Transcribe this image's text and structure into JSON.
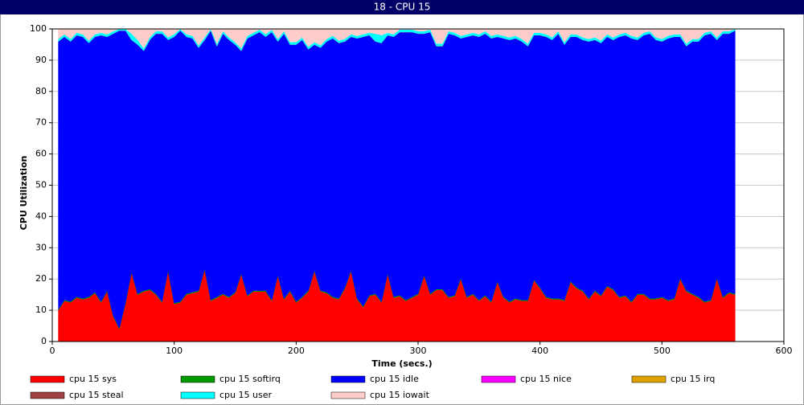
{
  "chart_data": {
    "type": "stacked-area",
    "title": "18 - CPU 15",
    "xlabel": "Time (secs.)",
    "ylabel": "CPU Utilization",
    "x": [
      5,
      10,
      15,
      20,
      25,
      30,
      35,
      40,
      45,
      50,
      55,
      60,
      65,
      70,
      75,
      80,
      85,
      90,
      95,
      100,
      105,
      110,
      115,
      120,
      125,
      130,
      135,
      140,
      145,
      150,
      155,
      160,
      165,
      170,
      175,
      180,
      185,
      190,
      195,
      200,
      205,
      210,
      215,
      220,
      225,
      230,
      235,
      240,
      245,
      250,
      255,
      260,
      265,
      270,
      275,
      280,
      285,
      290,
      295,
      300,
      305,
      310,
      315,
      320,
      325,
      330,
      335,
      340,
      345,
      350,
      355,
      360,
      365,
      370,
      375,
      380,
      385,
      390,
      395,
      400,
      405,
      410,
      415,
      420,
      425,
      430,
      435,
      440,
      445,
      450,
      455,
      460,
      465,
      470,
      475,
      480,
      485,
      490,
      495,
      500,
      505,
      510,
      515,
      520,
      525,
      530,
      535,
      540,
      545,
      550,
      555,
      560
    ],
    "xlim": [
      0,
      600
    ],
    "xticks": [
      0,
      100,
      200,
      300,
      400,
      500,
      600
    ],
    "ylim": [
      0,
      100
    ],
    "yticks": [
      0,
      10,
      20,
      30,
      40,
      50,
      60,
      70,
      80,
      90,
      100
    ],
    "grid": true,
    "legend": "bottom",
    "series": [
      {
        "name": "cpu 15 sys",
        "color": "#ff0000",
        "values": [
          10,
          13,
          12.5,
          14,
          13.5,
          14,
          15.5,
          12.5,
          16,
          8,
          4,
          12,
          22,
          15,
          16,
          16.5,
          15,
          12.5,
          22.5,
          12,
          12.5,
          15,
          15.5,
          16,
          23,
          13,
          14,
          15,
          14,
          15.5,
          21.5,
          14.5,
          16,
          16,
          16,
          13,
          21,
          13.5,
          16,
          12.5,
          14,
          16,
          22.5,
          16,
          15.5,
          14,
          13.5,
          17,
          22.5,
          13.5,
          11,
          14.5,
          15,
          12.5,
          21.5,
          14,
          14.5,
          13,
          14,
          15,
          21,
          15,
          16.5,
          16.5,
          14,
          14.5,
          20,
          14,
          15,
          13,
          14.5,
          12.5,
          19,
          14,
          12.5,
          13.5,
          13,
          13,
          19.5,
          17,
          14,
          13.5,
          13.5,
          13,
          19,
          17,
          16,
          13.5,
          16,
          14.5,
          17.5,
          16.5,
          14,
          14.5,
          12.5,
          15,
          15,
          13.5,
          13.5,
          14,
          13,
          13.5,
          20,
          16,
          15,
          14,
          12.5,
          13,
          20,
          14,
          15.5,
          15
        ]
      },
      {
        "name": "cpu 15 softirq",
        "color": "#009900",
        "values": [
          0.3,
          0.3,
          0.3,
          0.3,
          0.3,
          0.3,
          0.3,
          0.3,
          0.3,
          0.3,
          0.3,
          0.3,
          0.3,
          0.3,
          0.3,
          0.3,
          0.3,
          0.3,
          0.3,
          0.3,
          0.3,
          0.3,
          0.3,
          0.3,
          0.3,
          0.3,
          0.3,
          0.3,
          0.3,
          0.3,
          0.3,
          0.3,
          0.3,
          0.3,
          0.3,
          0.3,
          0.3,
          0.3,
          0.3,
          0.3,
          0.3,
          0.3,
          0.3,
          0.3,
          0.3,
          0.3,
          0.3,
          0.3,
          0.3,
          0.3,
          0.3,
          0.3,
          0.3,
          0.3,
          0.3,
          0.3,
          0.3,
          0.3,
          0.3,
          0.3,
          0.3,
          0.3,
          0.3,
          0.3,
          0.3,
          0.3,
          0.3,
          0.3,
          0.3,
          0.3,
          0.3,
          0.3,
          0.3,
          0.3,
          0.3,
          0.3,
          0.3,
          0.3,
          0.3,
          0.3,
          0.3,
          0.3,
          0.3,
          0.3,
          0.3,
          0.3,
          0.3,
          0.3,
          0.3,
          0.3,
          0.3,
          0.3,
          0.3,
          0.3,
          0.3,
          0.3,
          0.3,
          0.3,
          0.3,
          0.3,
          0.3,
          0.3,
          0.3,
          0.3,
          0.3,
          0.3,
          0.3,
          0.3,
          0.3,
          0.3,
          0.3,
          0.3
        ]
      },
      {
        "name": "cpu 15 idle",
        "color": "#0000ff",
        "values": [
          85.7,
          84.2,
          83.2,
          83.7,
          83.7,
          81.2,
          81.7,
          85.2,
          81.2,
          90.2,
          95.2,
          87.2,
          74.2,
          79.7,
          76.7,
          79.7,
          83.2,
          85.7,
          73.7,
          85.2,
          86.7,
          82.2,
          81.2,
          77.7,
          73.2,
          86.2,
          80.2,
          83.2,
          82.2,
          79.2,
          71.2,
          82.2,
          81.7,
          82.7,
          81.2,
          85.7,
          74.7,
          84.7,
          78.7,
          82.2,
          82.2,
          77.2,
          72.2,
          77.7,
          80.2,
          82.7,
          81.7,
          78.7,
          74.7,
          83.2,
          86.2,
          83.2,
          80.7,
          82.7,
          76.2,
          83.2,
          84.2,
          85.7,
          84.7,
          83.2,
          77.2,
          83.7,
          77.7,
          77.7,
          84.2,
          83.2,
          76.7,
          83.2,
          82.7,
          84.2,
          83.7,
          84.2,
          78.2,
          82.7,
          83.7,
          83.2,
          82.7,
          81.2,
          78.2,
          80.7,
          83.2,
          82.7,
          84.7,
          81.7,
          78.2,
          80.2,
          80.2,
          82.2,
          80.2,
          80.7,
          79.7,
          79.7,
          83.2,
          83.2,
          84.2,
          81.2,
          82.7,
          84.7,
          82.7,
          81.7,
          83.7,
          83.7,
          77.2,
          78.2,
          80.7,
          81.7,
          85.2,
          85.2,
          76.2,
          84.2,
          82.7,
          84.2
        ]
      },
      {
        "name": "cpu 15 nice",
        "color": "#ff00ff",
        "values": [
          0,
          0,
          0,
          0,
          0,
          0,
          0,
          0,
          0,
          0,
          0,
          0,
          0,
          0,
          0,
          0,
          0,
          0,
          0,
          0,
          0,
          0,
          0,
          0,
          0,
          0,
          0,
          0,
          0,
          0,
          0,
          0,
          0,
          0,
          0,
          0,
          0,
          0,
          0,
          0,
          0,
          0,
          0,
          0,
          0,
          0,
          0,
          0,
          0,
          0,
          0,
          0,
          0,
          0,
          0,
          0,
          0,
          0,
          0,
          0,
          0,
          0,
          0,
          0,
          0,
          0,
          0,
          0,
          0,
          0,
          0,
          0,
          0,
          0,
          0,
          0,
          0,
          0,
          0,
          0,
          0,
          0,
          0,
          0,
          0,
          0,
          0,
          0,
          0,
          0,
          0,
          0,
          0,
          0,
          0,
          0,
          0,
          0,
          0,
          0,
          0,
          0,
          0,
          0,
          0,
          0,
          0,
          0,
          0,
          0,
          0,
          0
        ]
      },
      {
        "name": "cpu 15 irq",
        "color": "#e0a000",
        "values": [
          0,
          0,
          0,
          0,
          0,
          0,
          0,
          0,
          0,
          0,
          0,
          0,
          0,
          0,
          0,
          0,
          0,
          0,
          0,
          0,
          0,
          0,
          0,
          0,
          0,
          0,
          0,
          0,
          0,
          0,
          0,
          0,
          0,
          0,
          0,
          0,
          0,
          0,
          0,
          0,
          0,
          0,
          0,
          0,
          0,
          0,
          0,
          0,
          0,
          0,
          0,
          0,
          0,
          0,
          0,
          0,
          0,
          0,
          0,
          0,
          0,
          0,
          0,
          0,
          0,
          0,
          0,
          0,
          0,
          0,
          0,
          0,
          0,
          0,
          0,
          0,
          0,
          0,
          0,
          0,
          0,
          0,
          0,
          0,
          0,
          0,
          0,
          0,
          0,
          0,
          0,
          0,
          0,
          0,
          0,
          0,
          0,
          0,
          0,
          0,
          0,
          0,
          0,
          0,
          0,
          0,
          0,
          0,
          0,
          0,
          0,
          0
        ]
      },
      {
        "name": "cpu 15 steal",
        "color": "#a04040",
        "values": [
          0,
          0,
          0,
          0,
          0,
          0,
          0,
          0,
          0,
          0,
          0,
          0,
          0,
          0,
          0,
          0,
          0,
          0,
          0,
          0,
          0,
          0,
          0,
          0,
          0,
          0,
          0,
          0,
          0,
          0,
          0,
          0,
          0,
          0,
          0,
          0,
          0,
          0,
          0,
          0,
          0,
          0,
          0,
          0,
          0,
          0,
          0,
          0,
          0,
          0,
          0,
          0,
          0,
          0,
          0,
          0,
          0,
          0,
          0,
          0,
          0,
          0,
          0,
          0,
          0,
          0,
          0,
          0,
          0,
          0,
          0,
          0,
          0,
          0,
          0,
          0,
          0,
          0,
          0,
          0,
          0,
          0,
          0,
          0,
          0,
          0,
          0,
          0,
          0,
          0,
          0,
          0,
          0,
          0,
          0,
          0,
          0,
          0,
          0,
          0,
          0,
          0,
          0,
          0,
          0,
          0,
          0,
          0,
          0,
          0,
          0,
          0
        ]
      },
      {
        "name": "cpu 15 user",
        "color": "#00ffff",
        "values": [
          0.8,
          0.8,
          0.8,
          0.8,
          0.8,
          0.8,
          0.8,
          0.8,
          0.8,
          0.8,
          0.5,
          0.5,
          2,
          1.5,
          0.8,
          0.8,
          0.8,
          0.8,
          0.8,
          0.8,
          0.5,
          0.8,
          0.8,
          0.8,
          0.8,
          0.5,
          0.8,
          0.8,
          0.8,
          0.8,
          0.8,
          0.8,
          0.8,
          0.8,
          0.8,
          0.8,
          0.8,
          0.8,
          0.8,
          0.8,
          0.8,
          0.8,
          0.8,
          0.8,
          0.8,
          0.8,
          0.8,
          0.8,
          0.8,
          0.8,
          0.8,
          0.8,
          2.5,
          2.5,
          0.8,
          0.8,
          0.8,
          0.8,
          0.8,
          0.8,
          0.8,
          0.8,
          0.8,
          0.8,
          0.8,
          0.8,
          0.8,
          0.8,
          0.8,
          0.8,
          0.8,
          0.8,
          0.8,
          0.8,
          0.8,
          0.8,
          0.8,
          0.8,
          0.8,
          0.8,
          0.8,
          0.8,
          0.8,
          0.8,
          0.8,
          0.8,
          0.8,
          0.8,
          0.8,
          0.8,
          0.8,
          0.8,
          0.8,
          0.8,
          0.8,
          0.8,
          0.8,
          0.8,
          0.8,
          0.8,
          0.8,
          0.8,
          0.8,
          0.8,
          0.8,
          0.8,
          0.8,
          0.8,
          0.8,
          0.8,
          0.8,
          0.5
        ]
      },
      {
        "name": "cpu 15 iowait",
        "color": "#ffcccc",
        "values": [
          3.2,
          1.7,
          3.2,
          1.2,
          1.7,
          3.7,
          1.7,
          1.2,
          1.7,
          0.7,
          0,
          0,
          1.5,
          3.5,
          6.2,
          2.7,
          0.7,
          0.7,
          2.7,
          1.7,
          0,
          1.7,
          2.2,
          5.2,
          2.7,
          0,
          4.7,
          0.7,
          2.7,
          4.2,
          6.2,
          2.2,
          1.2,
          0.2,
          1.7,
          0.2,
          3.2,
          0.7,
          4.2,
          4.2,
          2.7,
          5.7,
          4.2,
          5.2,
          3.2,
          2.2,
          3.7,
          3.2,
          1.7,
          2.2,
          1.7,
          1.2,
          1.5,
          2,
          1.2,
          1.7,
          0.2,
          0.2,
          0.2,
          0.7,
          0.7,
          0.2,
          4.7,
          4.7,
          0.7,
          1.2,
          2.2,
          1.7,
          1.2,
          1.7,
          0.7,
          2.2,
          1.7,
          2.2,
          2.7,
          2.2,
          3.2,
          4.7,
          1.2,
          1.2,
          1.7,
          2.7,
          0.7,
          4.2,
          1.7,
          1.7,
          2.7,
          3.2,
          2.7,
          3.7,
          1.7,
          2.7,
          1.7,
          1.2,
          2.2,
          2.7,
          1.2,
          0.7,
          2.7,
          3.2,
          2.2,
          1.7,
          1.7,
          4.7,
          3.2,
          3.2,
          1.2,
          0.7,
          2.7,
          0.7,
          0.7,
          0
        ]
      }
    ]
  }
}
